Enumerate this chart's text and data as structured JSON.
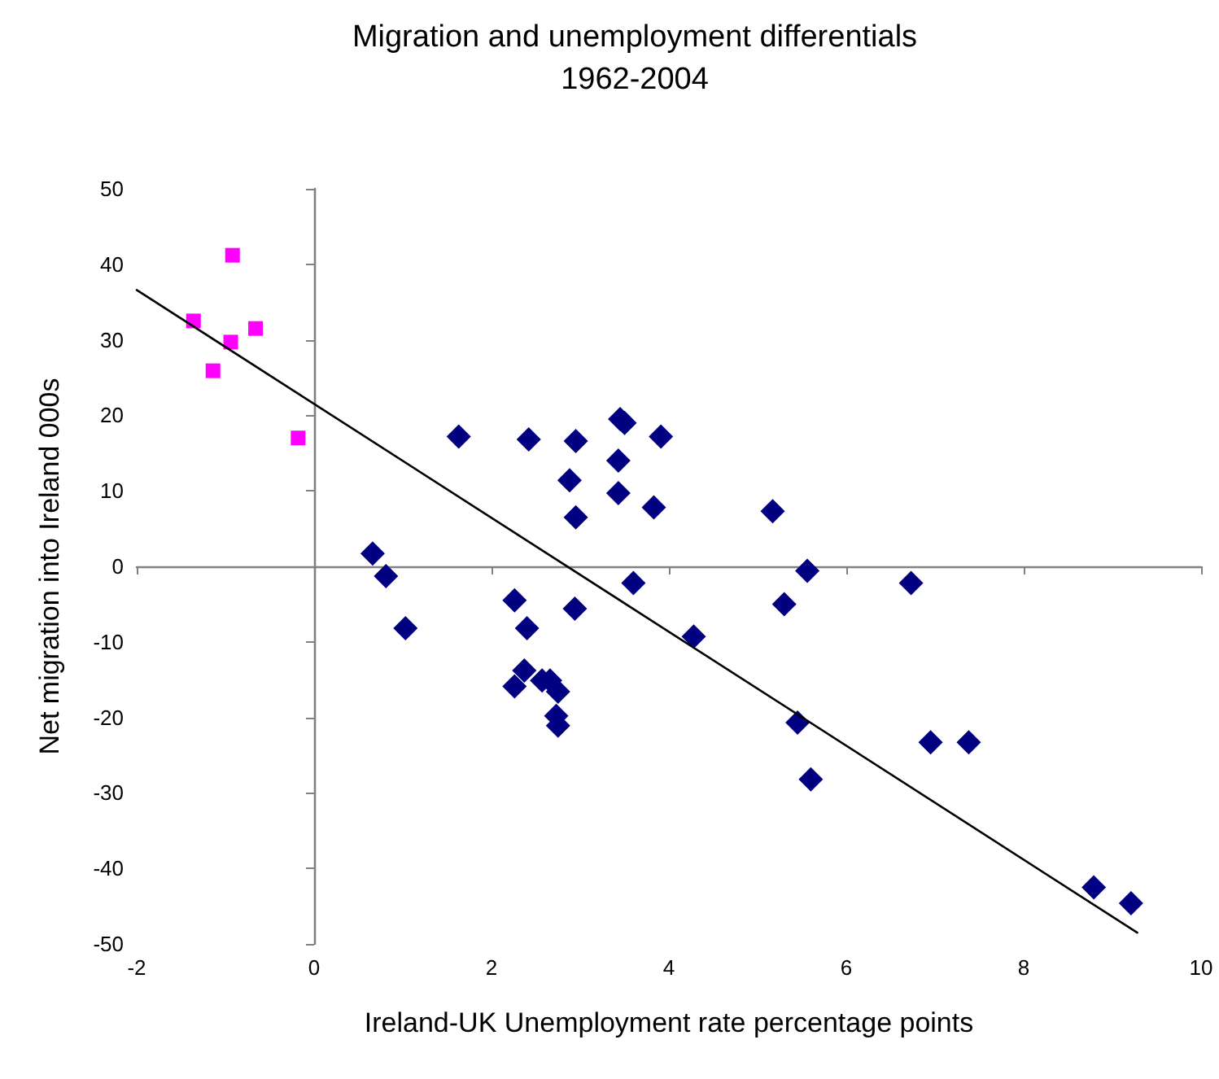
{
  "chart_data": {
    "type": "scatter",
    "title": "Migration and unemployment differentials\n1962-2004",
    "xlabel": "Ireland-UK Unemployment rate percentage points",
    "ylabel": "Net migration into Ireland 000s",
    "xlim": [
      -2,
      10
    ],
    "xticks": [
      -2,
      0,
      2,
      4,
      6,
      8,
      10
    ],
    "ylim": [
      -50,
      50
    ],
    "yticks": [
      -50,
      -40,
      -30,
      -20,
      -10,
      0,
      10,
      20,
      30,
      40,
      50
    ],
    "series": [
      {
        "color": "#ff00ff",
        "marker": "square",
        "x": [
          -1.36,
          -0.92,
          -0.94,
          -0.66,
          -1.14,
          -0.18
        ],
        "values": [
          32.5,
          41.2,
          29.7,
          31.5,
          25.9,
          17.0
        ]
      },
      {
        "color": "#000080",
        "marker": "diamond",
        "x": [
          0.66,
          0.81,
          1.03,
          1.63,
          2.26,
          2.42,
          2.95,
          2.88,
          2.95,
          3.45,
          3.5,
          3.43,
          3.43,
          3.83,
          3.91,
          3.6,
          2.94,
          2.4,
          2.26,
          2.37,
          2.57,
          2.66,
          2.75,
          2.73,
          2.75,
          4.28,
          5.17,
          5.56,
          5.3,
          5.45,
          5.6,
          6.73,
          6.95,
          7.38,
          8.79,
          9.21
        ],
        "values": [
          1.7,
          -1.3,
          -8.2,
          17.2,
          -4.5,
          16.8,
          16.6,
          11.4,
          6.5,
          19.5,
          19.0,
          14.0,
          9.7,
          7.8,
          17.2,
          -2.2,
          -5.6,
          -8.2,
          -15.9,
          -13.8,
          -15.1,
          -15.1,
          -16.6,
          -19.8,
          -21.1,
          -9.3,
          7.3,
          -0.6,
          -5.0,
          -20.7,
          -28.2,
          -2.2,
          -23.3,
          -23.3,
          -42.5,
          -44.6
        ]
      },
      {
        "type": "line",
        "color": "#000000",
        "marker": "none",
        "line_style": "solid",
        "x": [
          -2,
          9.28
        ],
        "values": [
          36.6,
          -48.5
        ]
      }
    ]
  }
}
